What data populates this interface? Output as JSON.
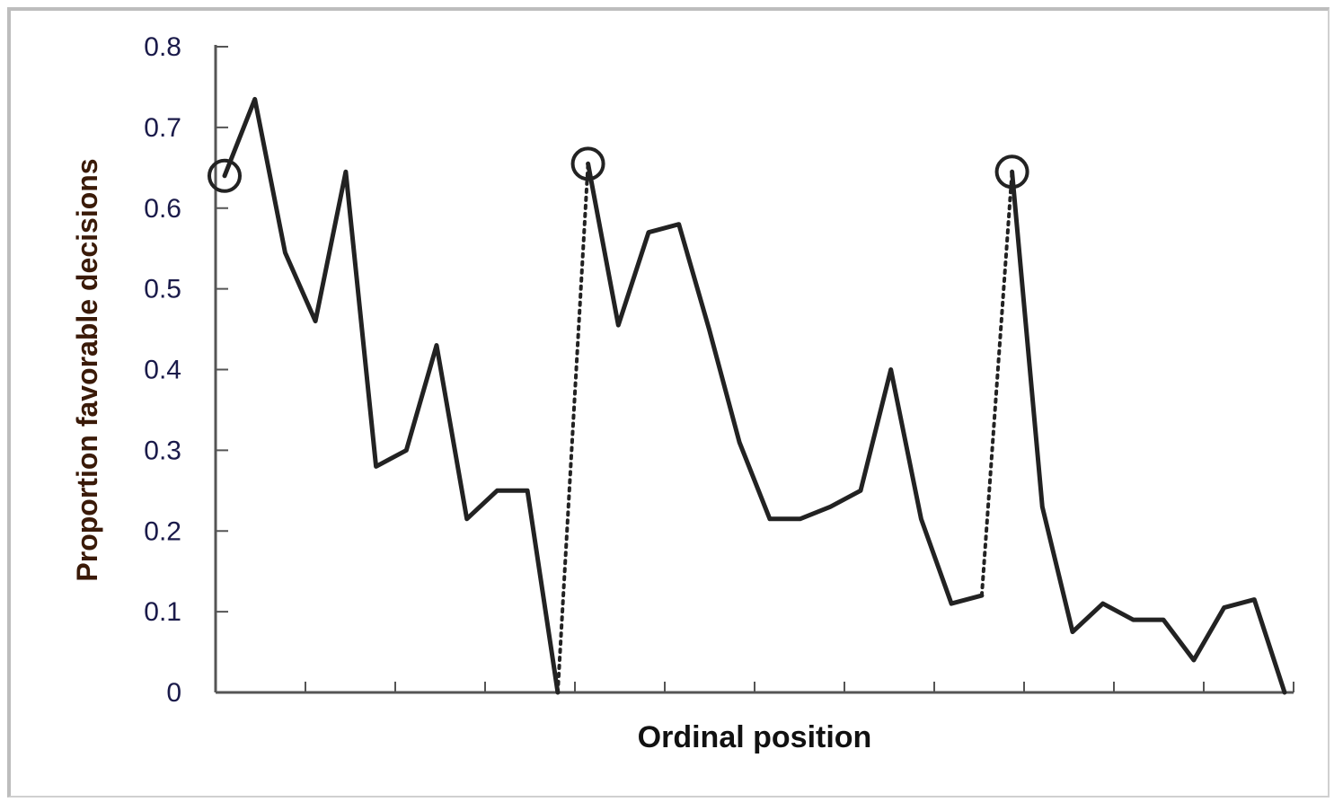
{
  "chart_data": {
    "type": "line",
    "title": "",
    "xlabel": "Ordinal position",
    "ylabel": "Proportion favorable decisions",
    "ylim": [
      0,
      0.8
    ],
    "yticks": [
      "0",
      "0.1",
      "0.2",
      "0.3",
      "0.4",
      "0.5",
      "0.6",
      "0.7",
      "0.8"
    ],
    "xlim": [
      1,
      36
    ],
    "x_tick_count": 13,
    "grid": false,
    "legend": "none",
    "line_color": "#222222",
    "segments": [
      {
        "style": "solid",
        "points": [
          [
            1,
            0.64
          ],
          [
            2,
            0.735
          ],
          [
            3,
            0.545
          ],
          [
            4,
            0.46
          ],
          [
            5,
            0.645
          ],
          [
            6,
            0.28
          ],
          [
            7,
            0.3
          ],
          [
            8,
            0.43
          ],
          [
            9,
            0.215
          ],
          [
            10,
            0.25
          ],
          [
            11,
            0.25
          ],
          [
            12,
            0.0
          ]
        ]
      },
      {
        "style": "dotted",
        "points": [
          [
            12,
            0.0
          ],
          [
            13,
            0.655
          ]
        ]
      },
      {
        "style": "solid",
        "points": [
          [
            13,
            0.655
          ],
          [
            14,
            0.455
          ],
          [
            15,
            0.57
          ],
          [
            16,
            0.58
          ],
          [
            17,
            0.45
          ],
          [
            18,
            0.31
          ],
          [
            19,
            0.215
          ],
          [
            20,
            0.215
          ],
          [
            21,
            0.23
          ],
          [
            22,
            0.25
          ],
          [
            23,
            0.4
          ],
          [
            24,
            0.215
          ],
          [
            25,
            0.11
          ],
          [
            26,
            0.12
          ]
        ]
      },
      {
        "style": "dotted",
        "points": [
          [
            26,
            0.12
          ],
          [
            27,
            0.645
          ]
        ]
      },
      {
        "style": "solid",
        "points": [
          [
            27,
            0.645
          ],
          [
            28,
            0.23
          ],
          [
            29,
            0.075
          ],
          [
            30,
            0.11
          ],
          [
            31,
            0.09
          ],
          [
            32,
            0.09
          ],
          [
            33,
            0.04
          ],
          [
            34,
            0.105
          ],
          [
            35,
            0.115
          ],
          [
            36,
            0.0
          ]
        ]
      }
    ],
    "circled_points": [
      [
        1,
        0.64
      ],
      [
        13,
        0.655
      ],
      [
        27,
        0.645
      ]
    ]
  }
}
